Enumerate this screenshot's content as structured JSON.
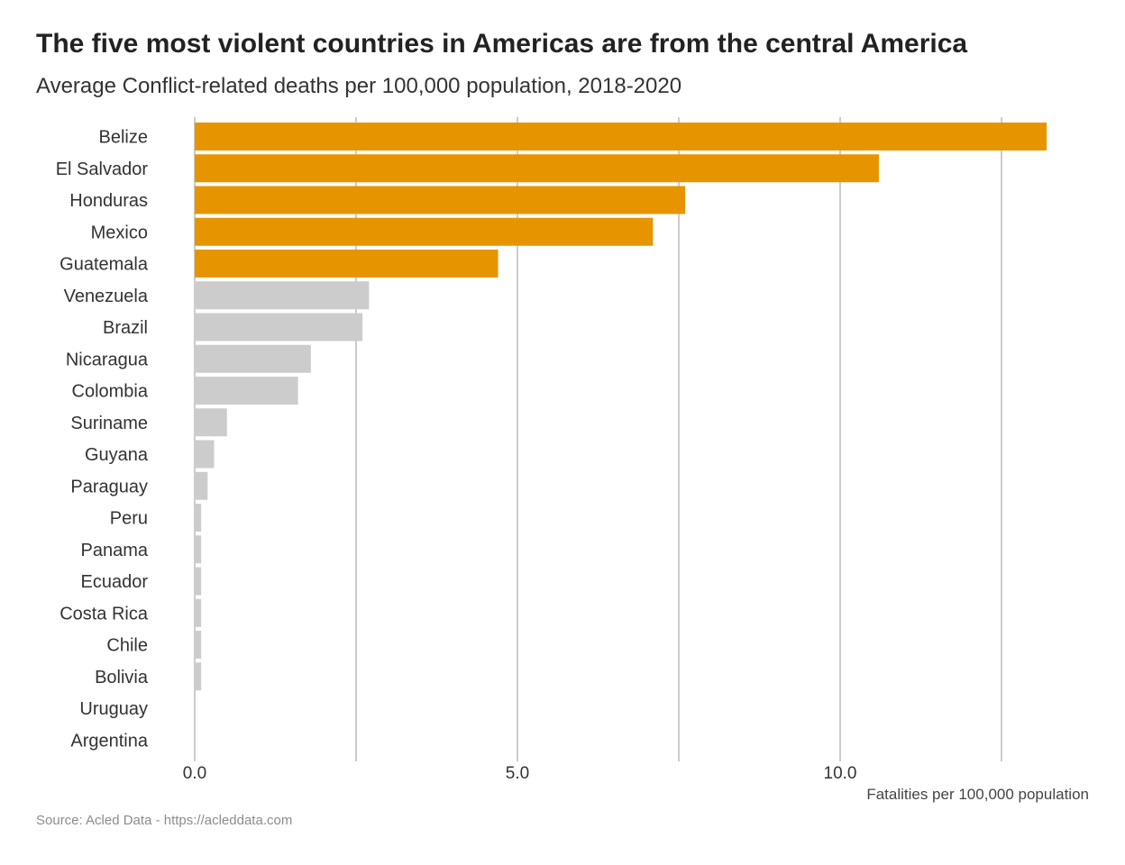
{
  "chart_data": {
    "type": "bar",
    "orientation": "horizontal",
    "title": "The five most violent countries in Americas are from the central America",
    "subtitle": "Average Conflict-related deaths per 100,000 population, 2018-2020",
    "xlabel": "Fatalities per 100,000 population",
    "ylabel": "",
    "xlim": [
      0,
      13.2
    ],
    "x_ticks": [
      0,
      5,
      10
    ],
    "x_tick_labels": [
      "0.0",
      "5.0",
      "10.0"
    ],
    "grid": true,
    "categories": [
      "Belize",
      "El Salvador",
      "Honduras",
      "Mexico",
      "Guatemala",
      "Venezuela",
      "Brazil",
      "Nicaragua",
      "Colombia",
      "Suriname",
      "Guyana",
      "Paraguay",
      "Peru",
      "Panama",
      "Ecuador",
      "Costa Rica",
      "Chile",
      "Bolivia",
      "Uruguay",
      "Argentina"
    ],
    "values": [
      13.2,
      10.6,
      7.6,
      7.1,
      4.7,
      2.7,
      2.6,
      1.8,
      1.6,
      0.5,
      0.3,
      0.2,
      0.1,
      0.1,
      0.1,
      0.1,
      0.1,
      0.1,
      0.0,
      0.0
    ],
    "highlight_count": 5,
    "colors": {
      "highlight": "#e69500",
      "default": "#cccccc",
      "grid": "#cccccc"
    },
    "source": "Source: Acled Data - https://acleddata.com"
  }
}
